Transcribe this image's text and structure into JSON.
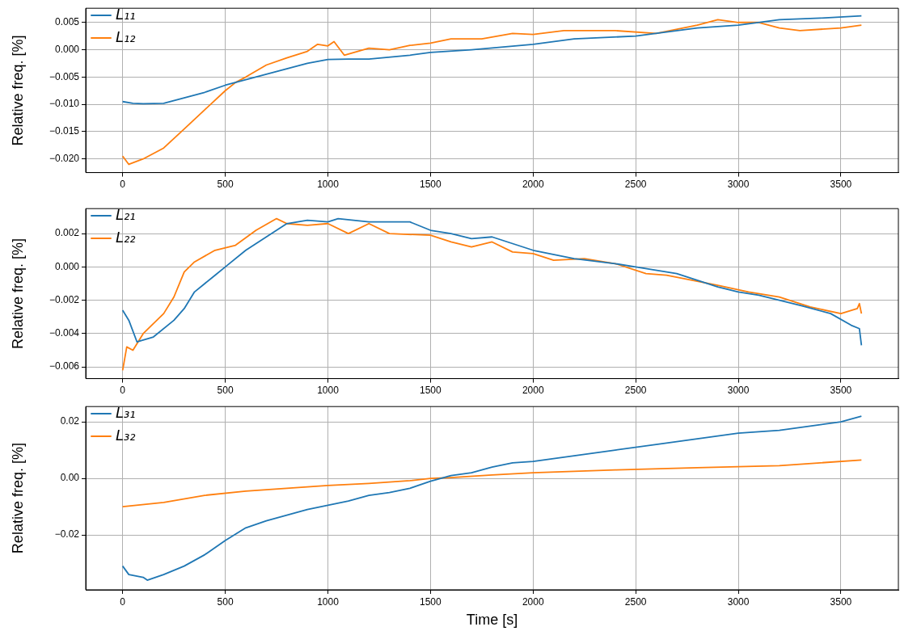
{
  "chart_data": [
    {
      "type": "line",
      "ylabel": "Relative freq. [%]",
      "xlim": [
        -180,
        3780
      ],
      "xticks": [
        0,
        500,
        1000,
        1500,
        2000,
        2500,
        3000,
        3500
      ],
      "ylim": [
        -0.0225,
        0.0076
      ],
      "yticks": [
        {
          "value": -0.02,
          "label": "−0.020"
        },
        {
          "value": -0.015,
          "label": "−0.015"
        },
        {
          "value": -0.01,
          "label": "−0.010"
        },
        {
          "value": -0.005,
          "label": "−0.005"
        },
        {
          "value": 0,
          "label": "0.000"
        },
        {
          "value": 0.005,
          "label": "0.005"
        }
      ],
      "grid": true,
      "legend": "top left",
      "series": [
        {
          "name": "L₁₁",
          "color": "#1f77b4",
          "x": [
            0,
            50,
            100,
            200,
            300,
            400,
            500,
            600,
            700,
            800,
            900,
            1000,
            1100,
            1200,
            1400,
            1500,
            1700,
            2000,
            2200,
            2500,
            2800,
            3000,
            3200,
            3400,
            3600
          ],
          "values": [
            -0.0095,
            -0.0098,
            -0.0099,
            -0.0098,
            -0.0088,
            -0.0078,
            -0.0065,
            -0.0055,
            -0.0045,
            -0.0035,
            -0.0025,
            -0.0018,
            -0.0017,
            -0.0017,
            -0.001,
            -0.0005,
            0.0,
            0.001,
            0.002,
            0.0025,
            0.004,
            0.0045,
            0.0055,
            0.0058,
            0.0062
          ]
        },
        {
          "name": "L₁₂",
          "color": "#ff7f0e",
          "x": [
            0,
            30,
            100,
            200,
            300,
            400,
            500,
            550,
            600,
            700,
            800,
            900,
            950,
            1000,
            1030,
            1080,
            1200,
            1300,
            1400,
            1500,
            1600,
            1750,
            1900,
            2000,
            2150,
            2400,
            2600,
            2800,
            2900,
            3000,
            3100,
            3200,
            3300,
            3500,
            3600
          ],
          "values": [
            -0.0195,
            -0.021,
            -0.02,
            -0.018,
            -0.0145,
            -0.011,
            -0.0075,
            -0.006,
            -0.005,
            -0.0028,
            -0.0015,
            -0.0003,
            0.001,
            0.0007,
            0.0015,
            -0.001,
            0.0003,
            0.0,
            0.0008,
            0.0012,
            0.002,
            0.002,
            0.003,
            0.0028,
            0.0035,
            0.0035,
            0.003,
            0.0045,
            0.0055,
            0.005,
            0.005,
            0.004,
            0.0035,
            0.004,
            0.0045
          ]
        }
      ]
    },
    {
      "type": "line",
      "ylabel": "Relative freq. [%]",
      "xlim": [
        -180,
        3780
      ],
      "xticks": [
        0,
        500,
        1000,
        1500,
        2000,
        2500,
        3000,
        3500
      ],
      "ylim": [
        -0.0067,
        0.0035
      ],
      "yticks": [
        {
          "value": -0.006,
          "label": "−0.006"
        },
        {
          "value": -0.004,
          "label": "−0.004"
        },
        {
          "value": -0.002,
          "label": "−0.002"
        },
        {
          "value": 0,
          "label": "0.000"
        },
        {
          "value": 0.002,
          "label": "0.002"
        }
      ],
      "grid": true,
      "legend": "top left",
      "series": [
        {
          "name": "L₂₁",
          "color": "#1f77b4",
          "x": [
            0,
            30,
            70,
            150,
            250,
            300,
            350,
            450,
            500,
            600,
            700,
            800,
            900,
            1000,
            1050,
            1200,
            1400,
            1500,
            1600,
            1700,
            1800,
            1900,
            2000,
            2200,
            2400,
            2500,
            2700,
            2900,
            3000,
            3100,
            3300,
            3450,
            3550,
            3590,
            3600
          ],
          "values": [
            -0.0026,
            -0.0032,
            -0.0045,
            -0.0042,
            -0.0032,
            -0.0025,
            -0.0015,
            -0.0005,
            0.0,
            0.001,
            0.0018,
            0.0026,
            0.0028,
            0.0027,
            0.0029,
            0.0027,
            0.0027,
            0.0022,
            0.002,
            0.0017,
            0.0018,
            0.0014,
            0.001,
            0.0005,
            0.0002,
            0.0,
            -0.0004,
            -0.0012,
            -0.0015,
            -0.0017,
            -0.0023,
            -0.0028,
            -0.0035,
            -0.0037,
            -0.0047
          ]
        },
        {
          "name": "L₂₂",
          "color": "#ff7f0e",
          "x": [
            0,
            20,
            50,
            100,
            200,
            250,
            300,
            350,
            450,
            550,
            650,
            750,
            800,
            900,
            1000,
            1100,
            1200,
            1300,
            1500,
            1600,
            1700,
            1800,
            1900,
            2000,
            2100,
            2250,
            2400,
            2550,
            2650,
            2900,
            3050,
            3200,
            3350,
            3500,
            3580,
            3590,
            3600
          ],
          "values": [
            -0.0062,
            -0.0048,
            -0.005,
            -0.004,
            -0.0028,
            -0.0018,
            -0.0003,
            0.0003,
            0.001,
            0.0013,
            0.0022,
            0.0029,
            0.0026,
            0.0025,
            0.0026,
            0.002,
            0.0026,
            0.002,
            0.0019,
            0.0015,
            0.0012,
            0.0015,
            0.0009,
            0.0008,
            0.0004,
            0.0005,
            0.0002,
            -0.0004,
            -0.0005,
            -0.0011,
            -0.0015,
            -0.0018,
            -0.0024,
            -0.0028,
            -0.0025,
            -0.0022,
            -0.0028
          ]
        }
      ]
    },
    {
      "type": "line",
      "xlabel": "Time [s]",
      "ylabel": "Relative freq. [%]",
      "xlim": [
        -180,
        3780
      ],
      "xticks": [
        0,
        500,
        1000,
        1500,
        2000,
        2500,
        3000,
        3500
      ],
      "ylim": [
        -0.0394,
        0.0254
      ],
      "yticks": [
        {
          "value": -0.02,
          "label": "−0.02"
        },
        {
          "value": 0,
          "label": "0.00"
        },
        {
          "value": 0.02,
          "label": "0.02"
        }
      ],
      "grid": true,
      "legend": "top left",
      "series": [
        {
          "name": "L₃₁",
          "color": "#1f77b4",
          "x": [
            0,
            30,
            100,
            120,
            200,
            300,
            400,
            500,
            600,
            700,
            800,
            900,
            1000,
            1100,
            1200,
            1300,
            1400,
            1500,
            1600,
            1700,
            1800,
            1900,
            2000,
            2200,
            2400,
            2600,
            2800,
            3000,
            3200,
            3400,
            3500,
            3600
          ],
          "values": [
            -0.031,
            -0.034,
            -0.035,
            -0.036,
            -0.034,
            -0.031,
            -0.027,
            -0.022,
            -0.0175,
            -0.015,
            -0.013,
            -0.011,
            -0.0095,
            -0.008,
            -0.006,
            -0.005,
            -0.0035,
            -0.001,
            0.001,
            0.002,
            0.004,
            0.0055,
            0.006,
            0.008,
            0.01,
            0.012,
            0.014,
            0.016,
            0.017,
            0.019,
            0.02,
            0.022
          ]
        },
        {
          "name": "L₃₂",
          "color": "#ff7f0e",
          "x": [
            0,
            200,
            400,
            600,
            800,
            1000,
            1200,
            1400,
            1500,
            1600,
            1800,
            2000,
            2400,
            2800,
            3200,
            3400,
            3600
          ],
          "values": [
            -0.01,
            -0.0085,
            -0.006,
            -0.0045,
            -0.0035,
            -0.0025,
            -0.0018,
            -0.0008,
            0.0,
            0.0003,
            0.0012,
            0.002,
            0.003,
            0.0038,
            0.0045,
            0.0055,
            0.0065
          ]
        }
      ]
    }
  ]
}
